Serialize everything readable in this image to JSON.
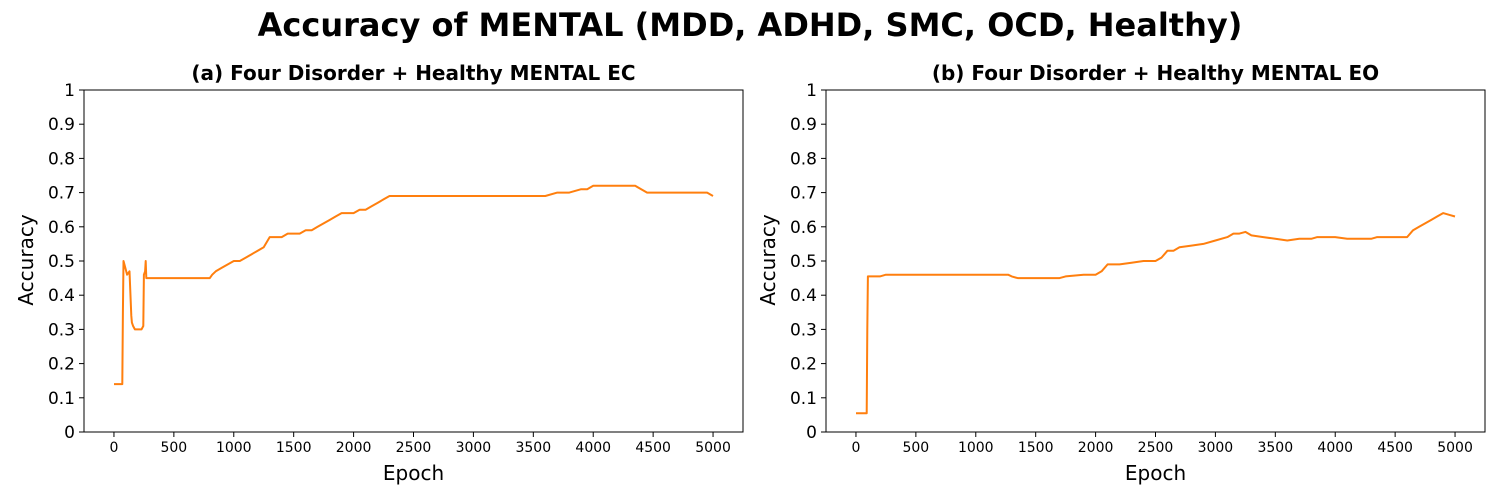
{
  "figure": {
    "title": "Accuracy of MENTAL (MDD, ADHD, SMC, OCD, Healthy)",
    "line_color": "#ff7f0e"
  },
  "chart_data": [
    {
      "type": "line",
      "title": "(a) Four Disorder + Healthy MENTAL EC",
      "xlabel": "Epoch",
      "ylabel": "Accuracy",
      "xlim": [
        -250,
        5250
      ],
      "ylim": [
        0,
        1
      ],
      "xticks": [
        0,
        500,
        1000,
        1500,
        2000,
        2500,
        3000,
        3500,
        4000,
        4500,
        5000
      ],
      "xtick_labels": [
        "0",
        "500",
        "1000",
        "1500",
        "2000",
        "2500",
        "3000",
        "3500",
        "4000",
        "4500",
        "5000"
      ],
      "yticks": [
        0,
        0.1,
        0.2,
        0.3,
        0.4,
        0.5,
        0.6,
        0.7,
        0.8,
        0.9,
        1
      ],
      "ytick_labels": [
        "0",
        "0.1",
        "0.2",
        "0.3",
        "0.4",
        "0.5",
        "0.6",
        "0.7",
        "0.8",
        "0.9",
        "1"
      ],
      "grid": false,
      "series": [
        {
          "color": "#ff7f0e",
          "x": [
            0,
            70,
            75,
            80,
            95,
            110,
            130,
            145,
            150,
            160,
            175,
            200,
            230,
            245,
            250,
            260,
            265,
            270,
            275,
            400,
            600,
            800,
            820,
            850,
            900,
            950,
            1000,
            1050,
            1100,
            1150,
            1200,
            1250,
            1300,
            1400,
            1450,
            1500,
            1550,
            1600,
            1650,
            1700,
            1750,
            1800,
            1850,
            1900,
            1950,
            2000,
            2050,
            2100,
            2150,
            2200,
            2250,
            2300,
            2400,
            2450,
            2500,
            2600,
            2700,
            2800,
            2900,
            3000,
            3100,
            3200,
            3300,
            3400,
            3500,
            3550,
            3600,
            3700,
            3800,
            3900,
            3950,
            4000,
            4100,
            4200,
            4300,
            4350,
            4400,
            4450,
            4500,
            4600,
            4700,
            4800,
            4900,
            4950,
            5000
          ],
          "y": [
            0.14,
            0.14,
            0.35,
            0.5,
            0.48,
            0.46,
            0.47,
            0.34,
            0.32,
            0.31,
            0.3,
            0.3,
            0.3,
            0.31,
            0.46,
            0.47,
            0.5,
            0.45,
            0.45,
            0.45,
            0.45,
            0.45,
            0.46,
            0.47,
            0.48,
            0.49,
            0.5,
            0.5,
            0.51,
            0.52,
            0.53,
            0.54,
            0.57,
            0.57,
            0.58,
            0.58,
            0.58,
            0.59,
            0.59,
            0.6,
            0.61,
            0.62,
            0.63,
            0.64,
            0.64,
            0.64,
            0.65,
            0.65,
            0.66,
            0.67,
            0.68,
            0.69,
            0.69,
            0.69,
            0.69,
            0.69,
            0.69,
            0.69,
            0.69,
            0.69,
            0.69,
            0.69,
            0.69,
            0.69,
            0.69,
            0.69,
            0.69,
            0.7,
            0.7,
            0.71,
            0.71,
            0.72,
            0.72,
            0.72,
            0.72,
            0.72,
            0.71,
            0.7,
            0.7,
            0.7,
            0.7,
            0.7,
            0.7,
            0.7,
            0.69
          ]
        }
      ]
    },
    {
      "type": "line",
      "title": "(b) Four Disorder + Healthy MENTAL EO",
      "xlabel": "Epoch",
      "ylabel": "Accuracy",
      "xlim": [
        -250,
        5250
      ],
      "ylim": [
        0,
        1
      ],
      "xticks": [
        0,
        500,
        1000,
        1500,
        2000,
        2500,
        3000,
        3500,
        4000,
        4500,
        5000
      ],
      "xtick_labels": [
        "0",
        "500",
        "1000",
        "1500",
        "2000",
        "2500",
        "3000",
        "3500",
        "4000",
        "4500",
        "5000"
      ],
      "yticks": [
        0,
        0.1,
        0.2,
        0.3,
        0.4,
        0.5,
        0.6,
        0.7,
        0.8,
        0.9,
        1
      ],
      "ytick_labels": [
        "0",
        "0.1",
        "0.2",
        "0.3",
        "0.4",
        "0.5",
        "0.6",
        "0.7",
        "0.8",
        "0.9",
        "1"
      ],
      "grid": false,
      "series": [
        {
          "color": "#ff7f0e",
          "x": [
            0,
            90,
            95,
            100,
            200,
            250,
            500,
            800,
            1000,
            1200,
            1270,
            1300,
            1350,
            1500,
            1700,
            1750,
            1900,
            2000,
            2050,
            2100,
            2150,
            2200,
            2300,
            2400,
            2500,
            2550,
            2600,
            2650,
            2700,
            2800,
            2900,
            3000,
            3100,
            3150,
            3200,
            3250,
            3300,
            3400,
            3500,
            3600,
            3700,
            3800,
            3850,
            3900,
            4000,
            4100,
            4200,
            4300,
            4350,
            4400,
            4450,
            4500,
            4550,
            4600,
            4650,
            4700,
            4750,
            4800,
            4850,
            4900,
            4950,
            5000
          ],
          "y": [
            0.055,
            0.055,
            0.3,
            0.455,
            0.455,
            0.46,
            0.46,
            0.46,
            0.46,
            0.46,
            0.46,
            0.455,
            0.45,
            0.45,
            0.45,
            0.455,
            0.46,
            0.46,
            0.47,
            0.49,
            0.49,
            0.49,
            0.495,
            0.5,
            0.5,
            0.51,
            0.53,
            0.53,
            0.54,
            0.545,
            0.55,
            0.56,
            0.57,
            0.58,
            0.58,
            0.585,
            0.575,
            0.57,
            0.565,
            0.56,
            0.565,
            0.565,
            0.57,
            0.57,
            0.57,
            0.565,
            0.565,
            0.565,
            0.57,
            0.57,
            0.57,
            0.57,
            0.57,
            0.57,
            0.59,
            0.6,
            0.61,
            0.62,
            0.63,
            0.64,
            0.635,
            0.63
          ]
        }
      ]
    }
  ]
}
